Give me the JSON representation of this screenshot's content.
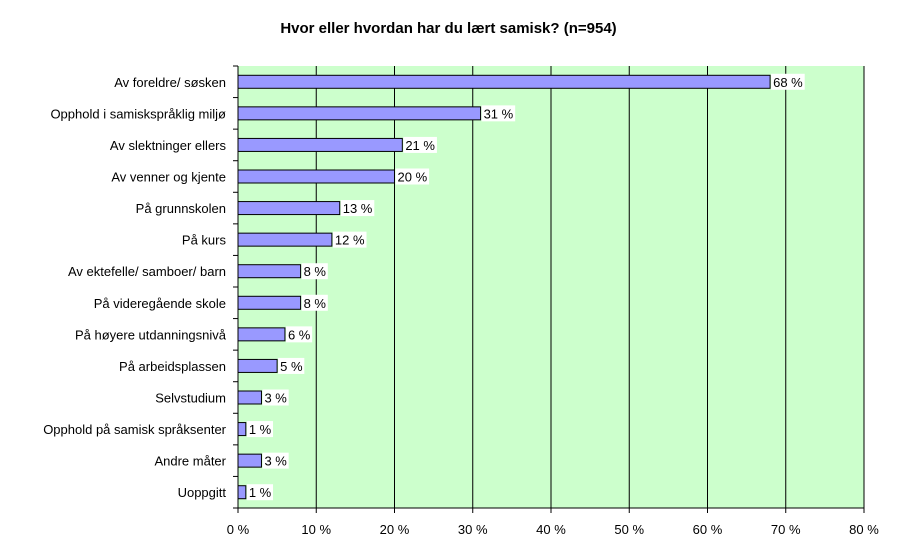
{
  "chart_data": {
    "type": "bar",
    "orientation": "horizontal",
    "title": "Hvor eller hvordan har du lært samisk? (n=954)",
    "categories": [
      "Av foreldre/ søsken",
      "Opphold i samiskspråklig miljø",
      "Av slektninger ellers",
      "Av venner og kjente",
      "På grunnskolen",
      "På kurs",
      "Av ektefelle/ samboer/ barn",
      "På videregående skole",
      "På høyere utdanningsnivå",
      "På arbeidsplassen",
      "Selvstudium",
      "Opphold på samisk språksenter",
      "Andre måter",
      "Uoppgitt"
    ],
    "values": [
      68,
      31,
      21,
      20,
      13,
      12,
      8,
      8,
      6,
      5,
      3,
      1,
      3,
      1
    ],
    "value_labels": [
      "68 %",
      "31 %",
      "21 %",
      "20 %",
      "13 %",
      "12 %",
      "8 %",
      "8 %",
      "6 %",
      "5 %",
      "3 %",
      "1 %",
      "3 %",
      "1 %"
    ],
    "xlim": [
      0,
      80
    ],
    "xticks": [
      0,
      10,
      20,
      30,
      40,
      50,
      60,
      70,
      80
    ],
    "xtick_labels": [
      "0 %",
      "10 %",
      "20 %",
      "30 %",
      "40 %",
      "50 %",
      "60 %",
      "70 %",
      "80 %"
    ],
    "xlabel": "",
    "ylabel": "",
    "grid": true,
    "colors": {
      "bar_fill": "#9999ff",
      "bar_stroke": "#000000",
      "plot_background": "#ccffcc",
      "gridline": "#000000",
      "label_background": "#ffffff"
    }
  }
}
